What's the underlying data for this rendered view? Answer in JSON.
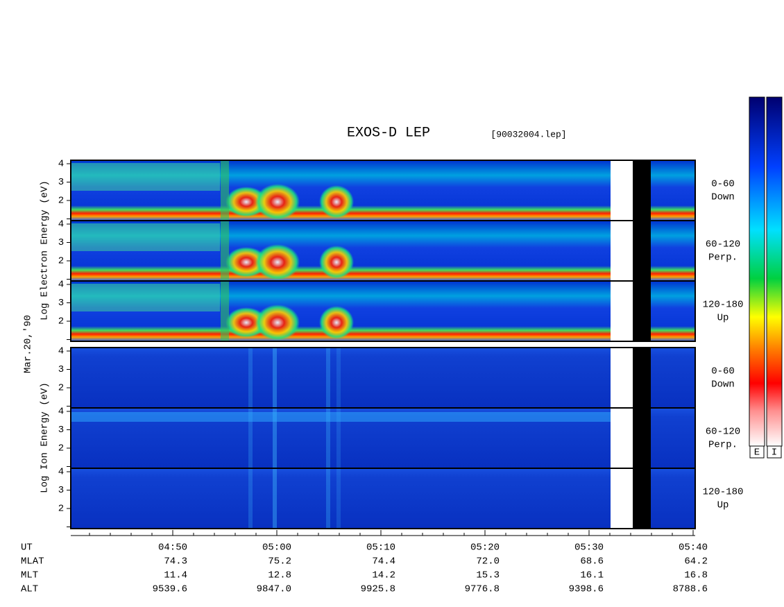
{
  "title": "EXOS-D LEP",
  "file": "[90032004.lep]",
  "electron_axis": "Log Electron Energy (eV)",
  "date": "Mar.20,'90",
  "ion_axis": "Log Ion Energy (eV)",
  "yticks": [
    4,
    3,
    2
  ],
  "panels": [
    {
      "range": "0-60",
      "direction": "Down"
    },
    {
      "range": "60-120",
      "direction": "Perp."
    },
    {
      "range": "120-180",
      "direction": "Up"
    },
    {
      "range": "0-60",
      "direction": "Down"
    },
    {
      "range": "60-120",
      "direction": "Perp."
    },
    {
      "range": "120-180",
      "direction": "Up"
    }
  ],
  "colorbar": [
    "E",
    "I"
  ],
  "time_table": {
    "rows": [
      "UT",
      "MLAT",
      "MLT",
      "ALT"
    ],
    "columns": [
      [
        "04:50",
        "74.3",
        "11.4",
        "9539.6"
      ],
      [
        "05:00",
        "75.2",
        "12.8",
        "9847.0"
      ],
      [
        "05:10",
        "74.4",
        "14.2",
        "9925.8"
      ],
      [
        "05:20",
        "72.0",
        "15.3",
        "9776.8"
      ],
      [
        "05:30",
        "68.6",
        "16.1",
        "9398.6"
      ],
      [
        "05:40",
        "64.2",
        "16.8",
        "8788.6"
      ]
    ]
  }
}
